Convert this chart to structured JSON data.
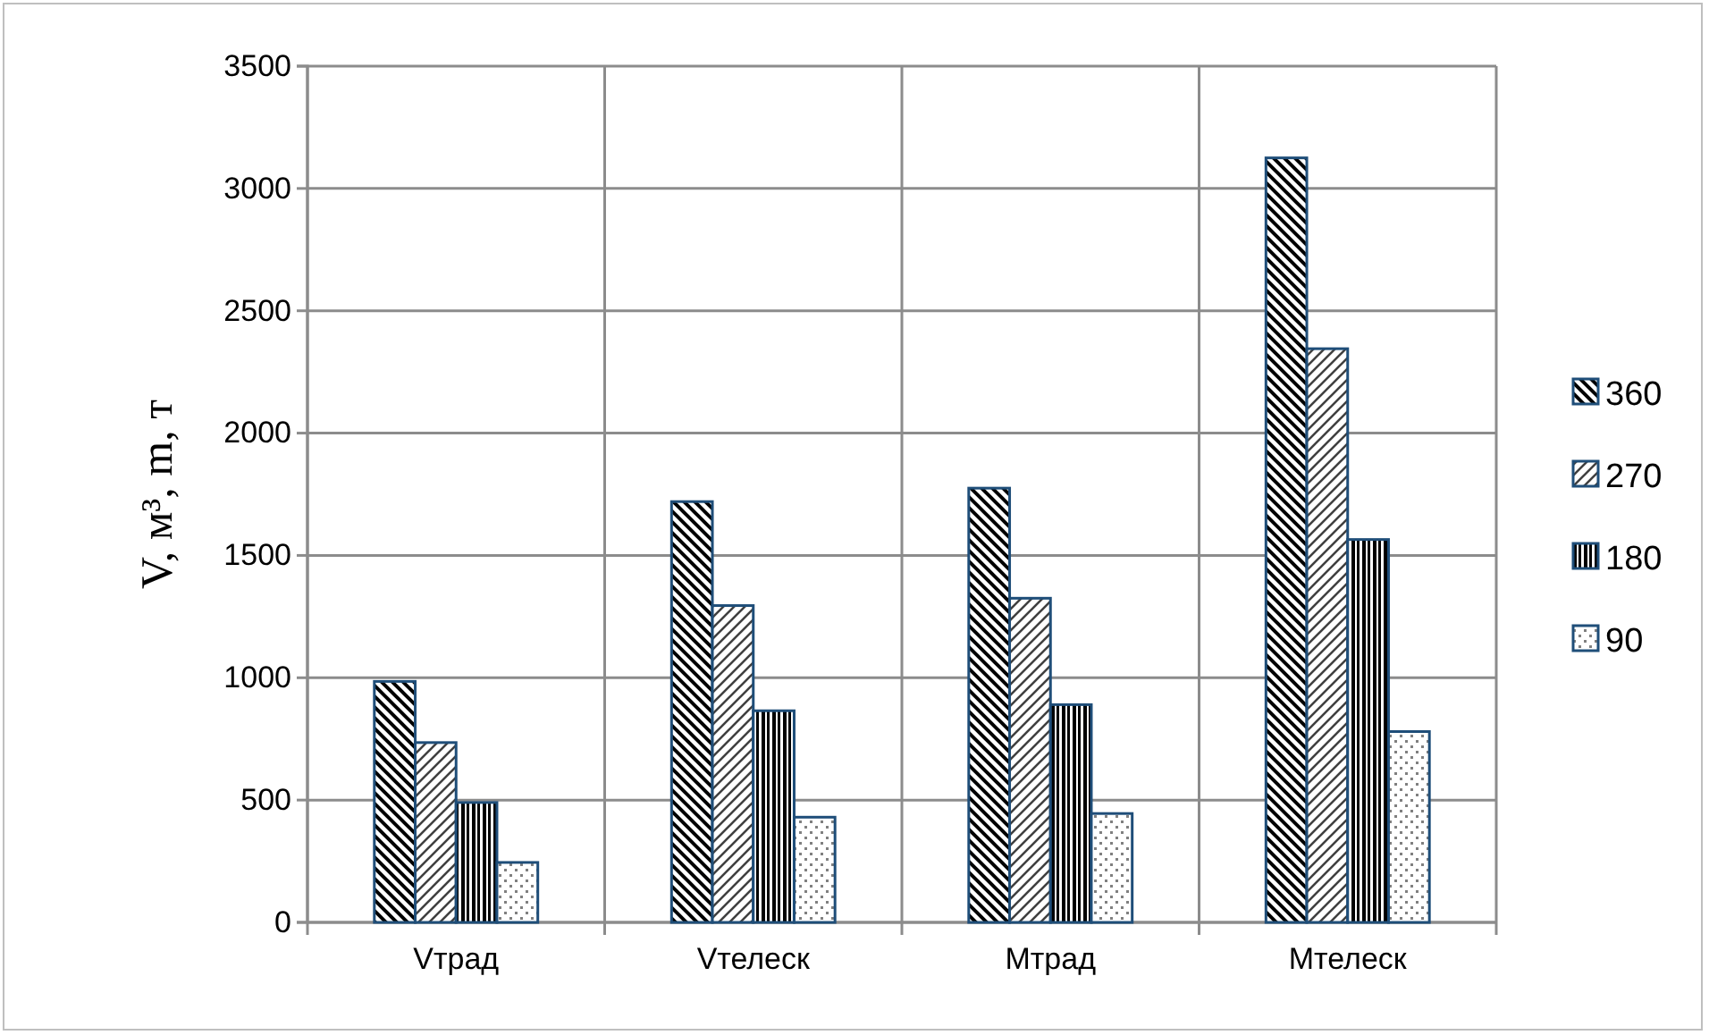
{
  "chart_data": {
    "type": "bar",
    "ylabel": "V, м³, m, т",
    "categories": [
      "Vтрад",
      "Vтелеск",
      "Mтрад",
      "Mтелеск"
    ],
    "series": [
      {
        "name": "360",
        "color": "#1f4e79",
        "values": [
          985,
          1720,
          1775,
          3125
        ]
      },
      {
        "name": "270",
        "color": "#1f4e79",
        "values": [
          735,
          1295,
          1325,
          2345
        ]
      },
      {
        "name": "180",
        "color": "#1f4e79",
        "values": [
          490,
          865,
          890,
          1565
        ]
      },
      {
        "name": "90",
        "color": "#1f4e79",
        "values": [
          245,
          430,
          445,
          780
        ]
      }
    ],
    "ylim": [
      0,
      3500
    ],
    "yticks": [
      0,
      500,
      1000,
      1500,
      2000,
      2500,
      3000,
      3500
    ],
    "grid": true,
    "legend": "right"
  }
}
